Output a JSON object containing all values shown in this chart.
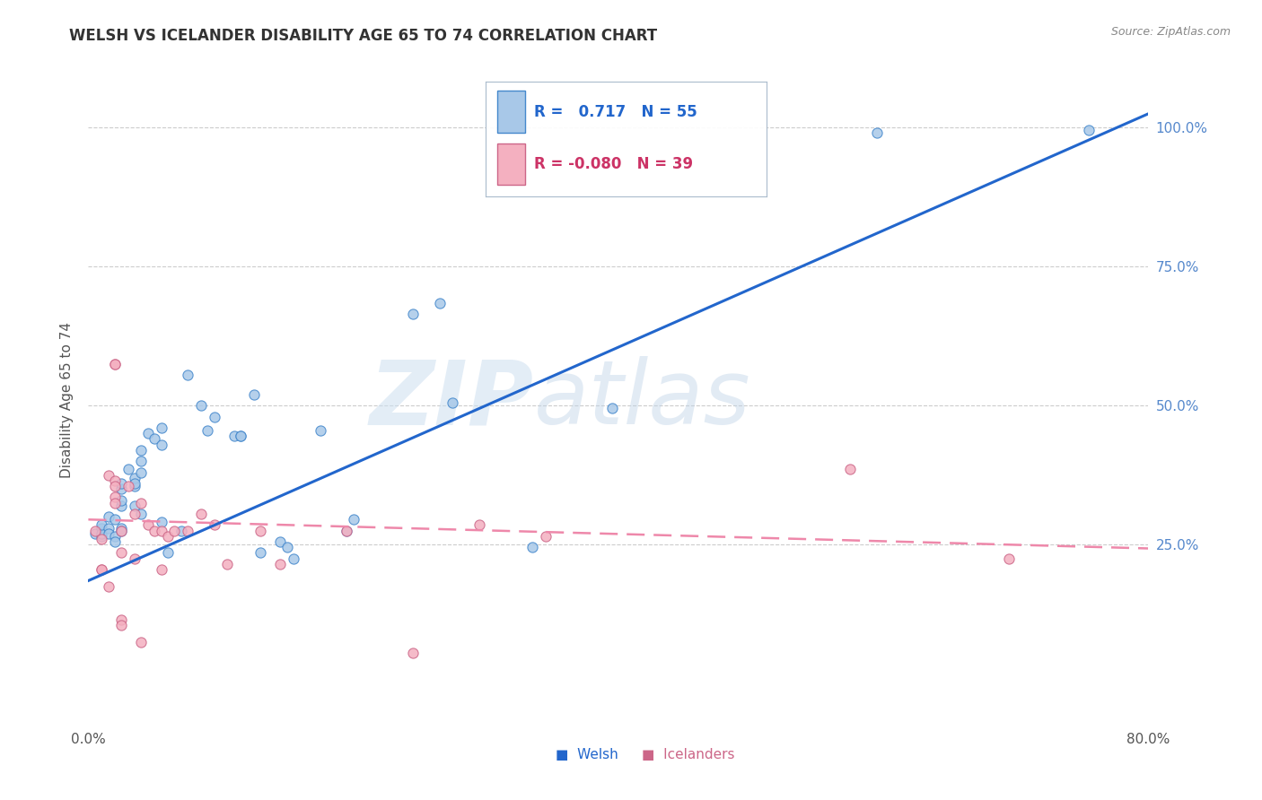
{
  "title": "WELSH VS ICELANDER DISABILITY AGE 65 TO 74 CORRELATION CHART",
  "source": "Source: ZipAtlas.com",
  "ylabel": "Disability Age 65 to 74",
  "xlim": [
    0.0,
    0.8
  ],
  "ylim": [
    -0.08,
    1.1
  ],
  "ytick_labels": [
    "25.0%",
    "50.0%",
    "75.0%",
    "100.0%"
  ],
  "ytick_positions": [
    0.25,
    0.5,
    0.75,
    1.0
  ],
  "xtick_positions": [
    0.0,
    0.1,
    0.2,
    0.3,
    0.4,
    0.5,
    0.6,
    0.7,
    0.8
  ],
  "welsh_color": "#a8c8e8",
  "icelander_color": "#f4b0c0",
  "welsh_line_color": "#2266cc",
  "icelander_line_color": "#ee88aa",
  "welsh_edge_color": "#4488cc",
  "icelander_edge_color": "#cc6688",
  "R_welsh": 0.717,
  "N_welsh": 55,
  "R_icelander": -0.08,
  "N_icelander": 39,
  "welsh_scatter": [
    [
      0.005,
      0.27
    ],
    [
      0.01,
      0.28
    ],
    [
      0.01,
      0.265
    ],
    [
      0.01,
      0.27
    ],
    [
      0.01,
      0.285
    ],
    [
      0.015,
      0.28
    ],
    [
      0.015,
      0.27
    ],
    [
      0.015,
      0.3
    ],
    [
      0.02,
      0.265
    ],
    [
      0.02,
      0.255
    ],
    [
      0.02,
      0.295
    ],
    [
      0.025,
      0.35
    ],
    [
      0.025,
      0.32
    ],
    [
      0.025,
      0.33
    ],
    [
      0.025,
      0.28
    ],
    [
      0.025,
      0.36
    ],
    [
      0.025,
      0.275
    ],
    [
      0.03,
      0.385
    ],
    [
      0.035,
      0.355
    ],
    [
      0.035,
      0.37
    ],
    [
      0.035,
      0.36
    ],
    [
      0.035,
      0.32
    ],
    [
      0.04,
      0.305
    ],
    [
      0.04,
      0.42
    ],
    [
      0.045,
      0.45
    ],
    [
      0.04,
      0.38
    ],
    [
      0.04,
      0.4
    ],
    [
      0.05,
      0.44
    ],
    [
      0.055,
      0.46
    ],
    [
      0.055,
      0.43
    ],
    [
      0.055,
      0.29
    ],
    [
      0.06,
      0.235
    ],
    [
      0.07,
      0.275
    ],
    [
      0.075,
      0.555
    ],
    [
      0.085,
      0.5
    ],
    [
      0.09,
      0.455
    ],
    [
      0.095,
      0.48
    ],
    [
      0.11,
      0.445
    ],
    [
      0.115,
      0.445
    ],
    [
      0.115,
      0.445
    ],
    [
      0.125,
      0.52
    ],
    [
      0.13,
      0.235
    ],
    [
      0.145,
      0.255
    ],
    [
      0.15,
      0.245
    ],
    [
      0.155,
      0.225
    ],
    [
      0.175,
      0.455
    ],
    [
      0.195,
      0.275
    ],
    [
      0.2,
      0.295
    ],
    [
      0.245,
      0.665
    ],
    [
      0.265,
      0.685
    ],
    [
      0.275,
      0.505
    ],
    [
      0.335,
      0.245
    ],
    [
      0.395,
      0.495
    ],
    [
      0.595,
      0.99
    ],
    [
      0.755,
      0.995
    ]
  ],
  "icelander_scatter": [
    [
      0.005,
      0.275
    ],
    [
      0.01,
      0.205
    ],
    [
      0.01,
      0.26
    ],
    [
      0.01,
      0.205
    ],
    [
      0.015,
      0.175
    ],
    [
      0.015,
      0.375
    ],
    [
      0.02,
      0.575
    ],
    [
      0.02,
      0.575
    ],
    [
      0.02,
      0.365
    ],
    [
      0.02,
      0.355
    ],
    [
      0.02,
      0.335
    ],
    [
      0.02,
      0.325
    ],
    [
      0.025,
      0.275
    ],
    [
      0.025,
      0.235
    ],
    [
      0.025,
      0.115
    ],
    [
      0.025,
      0.105
    ],
    [
      0.03,
      0.355
    ],
    [
      0.035,
      0.305
    ],
    [
      0.035,
      0.225
    ],
    [
      0.04,
      0.075
    ],
    [
      0.04,
      0.325
    ],
    [
      0.045,
      0.285
    ],
    [
      0.05,
      0.275
    ],
    [
      0.055,
      0.205
    ],
    [
      0.055,
      0.275
    ],
    [
      0.06,
      0.265
    ],
    [
      0.065,
      0.275
    ],
    [
      0.075,
      0.275
    ],
    [
      0.085,
      0.305
    ],
    [
      0.095,
      0.285
    ],
    [
      0.105,
      0.215
    ],
    [
      0.13,
      0.275
    ],
    [
      0.145,
      0.215
    ],
    [
      0.195,
      0.275
    ],
    [
      0.245,
      0.055
    ],
    [
      0.295,
      0.285
    ],
    [
      0.345,
      0.265
    ],
    [
      0.575,
      0.385
    ],
    [
      0.695,
      0.225
    ]
  ],
  "welsh_trendline_x": [
    0.0,
    0.8
  ],
  "welsh_trendline_y": [
    0.185,
    1.025
  ],
  "icelander_trendline_x": [
    0.0,
    0.8
  ],
  "icelander_trendline_y": [
    0.295,
    0.243
  ]
}
